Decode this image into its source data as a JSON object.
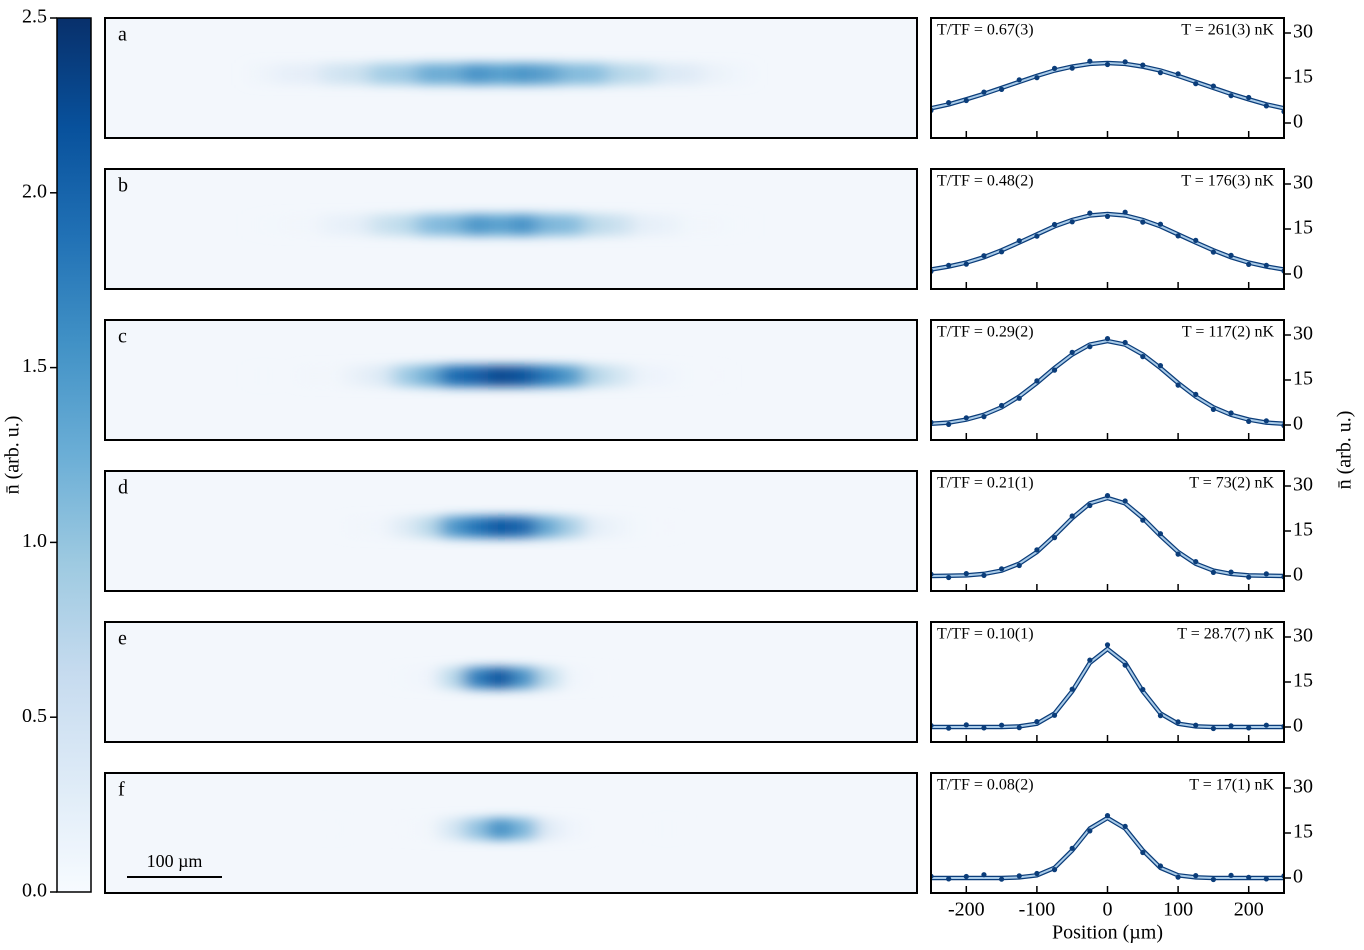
{
  "colorbar": {
    "label": "n̄ (arb. u.)",
    "ylim": [
      0,
      2.5
    ],
    "yticks": [
      {
        "value": 0,
        "label": "0.0"
      },
      {
        "value": 0.5,
        "label": "0.5"
      },
      {
        "value": 1,
        "label": "1.0"
      },
      1.5,
      {
        "value": 2,
        "label": "2.0"
      },
      2.5
    ],
    "colors": [
      "#f7fbff",
      "#deebf7",
      "#c6dbef",
      "#9ecae1",
      "#6baed6",
      "#4292c6",
      "#2171b5",
      "#08519c",
      "#08306b"
    ]
  },
  "scalebar": {
    "label": "100 µm",
    "length": 100
  },
  "axes": {
    "xlabel": "Position (µm)",
    "ylabel": "n̄ (arb. u.)",
    "xlim": [
      -250,
      250
    ],
    "xticks": [
      -200,
      -100,
      0,
      100,
      200
    ],
    "ylim": [
      -5,
      35
    ],
    "yticks": [
      0,
      15,
      30
    ]
  },
  "chart_data": [
    {
      "type": "scatter",
      "label": "a",
      "annotation_left": "T/TF = 0.67(3)",
      "annotation_right": "T = 261(3) nK",
      "x": [
        -250,
        -225,
        -200,
        -175,
        -150,
        -125,
        -100,
        -75,
        -50,
        -25,
        0,
        25,
        50,
        75,
        100,
        125,
        150,
        175,
        200,
        225,
        250
      ],
      "points": {
        "color": "#0b3d7a",
        "values": [
          4.2,
          6.8,
          7.5,
          10.3,
          11.2,
          14.4,
          15.1,
          18.2,
          18.3,
          20.6,
          19.5,
          20.4,
          19.3,
          16.8,
          16.4,
          13.1,
          12.3,
          9.1,
          8.5,
          5.7,
          3.8
        ]
      },
      "fit": {
        "color": "#a9cbe8",
        "values": [
          4.9,
          6.2,
          7.9,
          9.7,
          11.7,
          13.7,
          15.7,
          17.5,
          18.8,
          19.7,
          20,
          19.7,
          18.8,
          17.5,
          15.7,
          13.7,
          11.7,
          9.7,
          7.9,
          6.2,
          4.9
        ]
      }
    },
    {
      "type": "scatter",
      "label": "b",
      "annotation_left": "T/TF = 0.48(2)",
      "annotation_right": "T = 176(3) nK",
      "x": [
        -250,
        -225,
        -200,
        -175,
        -150,
        -125,
        -100,
        -75,
        -50,
        -25,
        0,
        25,
        50,
        75,
        100,
        125,
        150,
        175,
        200,
        225,
        250
      ],
      "points": {
        "color": "#0b3d7a",
        "values": [
          0.9,
          2.9,
          3.3,
          6.1,
          7.4,
          11.1,
          12.6,
          16.5,
          17.4,
          20.3,
          19.2,
          20.6,
          17.3,
          16.6,
          12.7,
          11.2,
          7.3,
          6.2,
          3.2,
          2.9,
          1.0
        ]
      },
      "fit": {
        "color": "#a9cbe8",
        "values": [
          1.5,
          2.5,
          3.8,
          5.6,
          7.9,
          10.5,
          13.2,
          15.9,
          18,
          19.5,
          20,
          19.5,
          18,
          15.9,
          13.2,
          10.5,
          7.9,
          5.6,
          3.8,
          2.5,
          1.5
        ]
      }
    },
    {
      "type": "scatter",
      "label": "c",
      "annotation_left": "T/TF = 0.29(2)",
      "annotation_right": "T = 117(2) nK",
      "x": [
        -250,
        -225,
        -200,
        -175,
        -150,
        -125,
        -100,
        -75,
        -50,
        -25,
        0,
        25,
        50,
        75,
        100,
        125,
        150,
        175,
        200,
        225,
        250
      ],
      "points": {
        "color": "#0b3d7a",
        "values": [
          0.9,
          0.2,
          2.4,
          2.8,
          6.5,
          8.9,
          14.7,
          18.3,
          24.2,
          26.1,
          28.8,
          27.5,
          22.8,
          19.8,
          13.3,
          10.2,
          5.2,
          4.0,
          1.2,
          1.4,
          -0.2
        ]
      },
      "fit": {
        "color": "#a9cbe8",
        "values": [
          0.4,
          0.8,
          1.8,
          3.4,
          5.9,
          9.5,
          14,
          19,
          23.5,
          26.8,
          28,
          26.8,
          23.5,
          19,
          14,
          9.5,
          5.9,
          3.4,
          1.8,
          0.8,
          0.4
        ]
      }
    },
    {
      "type": "scatter",
      "label": "d",
      "annotation_left": "T/TF = 0.21(1)",
      "annotation_right": "T = 73(2) nK",
      "x": [
        -250,
        -225,
        -200,
        -175,
        -150,
        -125,
        -100,
        -75,
        -50,
        -25,
        0,
        25,
        50,
        75,
        100,
        125,
        150,
        175,
        200,
        225,
        250
      ],
      "points": {
        "color": "#0b3d7a",
        "values": [
          0.6,
          -0.5,
          0.8,
          0.2,
          2.4,
          3.5,
          8.7,
          12.8,
          20.0,
          23.5,
          26.8,
          25.0,
          18.6,
          14.1,
          7.3,
          4.8,
          1.2,
          1.3,
          -0.4,
          0.7,
          -0.3
        ]
      },
      "fit": {
        "color": "#a9cbe8",
        "values": [
          0,
          0.1,
          0.2,
          0.7,
          1.8,
          4.1,
          8,
          13.4,
          19.3,
          24.2,
          26,
          24.2,
          19.3,
          13.4,
          8,
          4.1,
          1.8,
          0.7,
          0.2,
          0.1,
          0
        ]
      }
    },
    {
      "type": "scatter",
      "label": "e",
      "annotation_left": "T/TF = 0.10(1)",
      "annotation_right": "T = 28.7(7) nK",
      "x": [
        -250,
        -225,
        -200,
        -175,
        -150,
        -125,
        -100,
        -75,
        -50,
        -25,
        0,
        25,
        50,
        75,
        100,
        125,
        150,
        175,
        200,
        225,
        250
      ],
      "points": {
        "color": "#0b3d7a",
        "values": [
          0.5,
          -0.4,
          0.7,
          -0.3,
          0.6,
          -0.2,
          1.8,
          3.9,
          12.6,
          22.3,
          27.4,
          20.6,
          12.5,
          3.8,
          1.7,
          0.6,
          -0.5,
          0.4,
          -0.3,
          0.6,
          0.2
        ]
      },
      "fit": {
        "color": "#a9cbe8",
        "values": [
          0,
          0,
          0,
          0,
          0,
          0.2,
          1.1,
          4.5,
          11.9,
          21.4,
          26,
          21.4,
          11.9,
          4.5,
          1.1,
          0.2,
          0,
          0,
          0,
          0,
          0
        ]
      }
    },
    {
      "type": "scatter",
      "label": "f",
      "annotation_left": "T/TF = 0.08(2)",
      "annotation_right": "T = 17(1) nK",
      "x": [
        -250,
        -225,
        -200,
        -175,
        -150,
        -125,
        -100,
        -75,
        -50,
        -25,
        0,
        25,
        50,
        75,
        100,
        125,
        150,
        175,
        200,
        225,
        250
      ],
      "points": {
        "color": "#0b3d7a",
        "values": [
          0.6,
          -0.3,
          0.5,
          1.1,
          -0.4,
          0.7,
          1.5,
          2.8,
          9.9,
          15.7,
          20.8,
          17.2,
          8.5,
          4.0,
          0.3,
          0.8,
          -0.5,
          0.9,
          0.2,
          -0.3,
          0.7
        ]
      },
      "fit": {
        "color": "#a9cbe8",
        "values": [
          0,
          0,
          0,
          0,
          0,
          0.2,
          0.9,
          3.4,
          9.2,
          16.5,
          20,
          16.5,
          9.2,
          3.4,
          0.9,
          0.2,
          0,
          0,
          0,
          0,
          0
        ]
      }
    }
  ]
}
